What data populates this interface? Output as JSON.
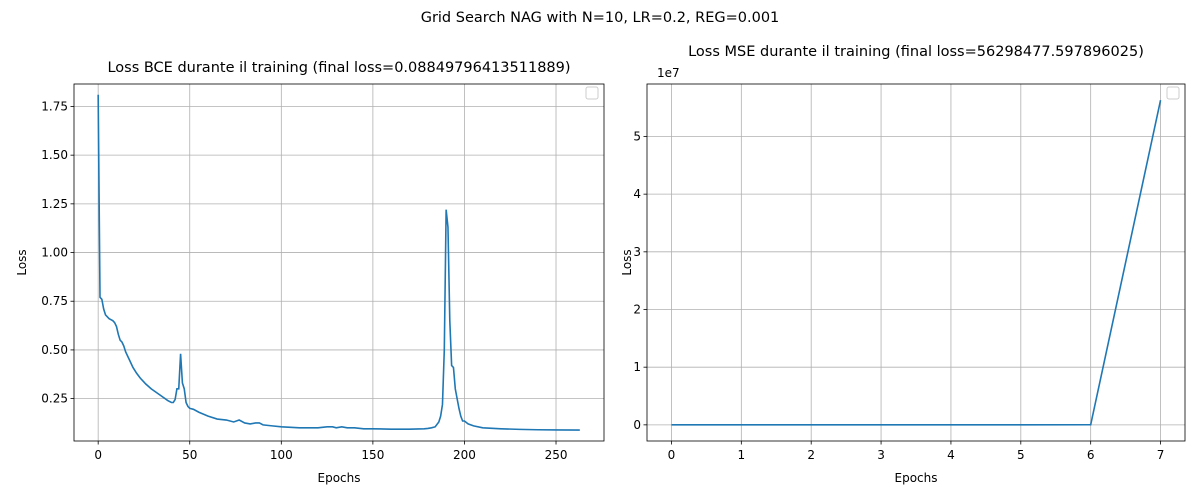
{
  "figure": {
    "suptitle": "Grid Search NAG with N=10, LR=0.2, REG=0.001",
    "line_color": "#1f77b4"
  },
  "chart_data": [
    {
      "type": "line",
      "title": "Loss BCE durante il training (final loss=0.08849796413511889)",
      "xlabel": "Epochs",
      "ylabel": "Loss",
      "xlim": [
        -13.2,
        276.2
      ],
      "ylim": [
        0.0323,
        1.8654
      ],
      "xticks": [
        0,
        50,
        100,
        150,
        200,
        250
      ],
      "yticks": [
        0.25,
        0.5,
        0.75,
        1.0,
        1.25,
        1.5,
        1.75
      ],
      "ytick_labels": [
        "0.25",
        "0.50",
        "0.75",
        "1.00",
        "1.25",
        "1.50",
        "1.75"
      ],
      "grid": true,
      "legend": "upper-right",
      "series": [
        {
          "x": [
            0,
            1,
            2,
            3,
            4,
            5,
            6,
            7,
            8,
            9,
            10,
            11,
            12,
            13,
            14,
            15,
            17,
            19,
            21,
            23,
            26,
            29,
            32,
            35,
            38,
            40,
            41,
            42,
            43,
            44,
            45,
            46,
            47,
            48,
            49,
            50,
            52,
            55,
            60,
            65,
            70,
            74,
            77,
            80,
            83,
            86,
            88,
            90,
            95,
            100,
            110,
            120,
            125,
            128,
            130,
            133,
            136,
            140,
            145,
            150,
            160,
            170,
            175,
            178,
            180,
            182,
            184,
            186,
            187,
            188,
            189,
            190,
            191,
            192,
            193,
            194,
            195,
            196,
            197,
            198,
            199,
            200,
            202,
            205,
            210,
            220,
            230,
            240,
            250,
            263
          ],
          "y": [
            1.81,
            0.77,
            0.76,
            0.71,
            0.68,
            0.67,
            0.66,
            0.655,
            0.65,
            0.64,
            0.62,
            0.58,
            0.55,
            0.54,
            0.52,
            0.49,
            0.45,
            0.41,
            0.38,
            0.355,
            0.325,
            0.3,
            0.28,
            0.26,
            0.24,
            0.23,
            0.23,
            0.245,
            0.3,
            0.3,
            0.48,
            0.33,
            0.3,
            0.23,
            0.21,
            0.2,
            0.195,
            0.18,
            0.16,
            0.145,
            0.14,
            0.13,
            0.14,
            0.125,
            0.12,
            0.125,
            0.125,
            0.115,
            0.11,
            0.105,
            0.1,
            0.1,
            0.105,
            0.105,
            0.1,
            0.105,
            0.1,
            0.1,
            0.095,
            0.095,
            0.093,
            0.093,
            0.094,
            0.095,
            0.097,
            0.1,
            0.105,
            0.13,
            0.16,
            0.22,
            0.5,
            1.22,
            1.13,
            0.65,
            0.42,
            0.41,
            0.3,
            0.25,
            0.2,
            0.16,
            0.135,
            0.135,
            0.12,
            0.11,
            0.1,
            0.095,
            0.092,
            0.09,
            0.089,
            0.0885
          ]
        }
      ]
    },
    {
      "type": "line",
      "title": "Loss MSE durante il training (final loss=56298477.597896025)",
      "xlabel": "Epochs",
      "ylabel": "Loss",
      "offset_text": "1e7",
      "xlim": [
        -0.35,
        7.35
      ],
      "ylim": [
        -0.28,
        5.91
      ],
      "xticks": [
        0,
        1,
        2,
        3,
        4,
        5,
        6,
        7
      ],
      "yticks": [
        0,
        1,
        2,
        3,
        4,
        5
      ],
      "grid": true,
      "legend": "upper-right",
      "series": [
        {
          "x": [
            0,
            1,
            2,
            3,
            4,
            5,
            6,
            7
          ],
          "y": [
            0,
            0,
            0,
            0,
            0,
            0,
            0.002,
            5.6298
          ]
        }
      ]
    }
  ]
}
